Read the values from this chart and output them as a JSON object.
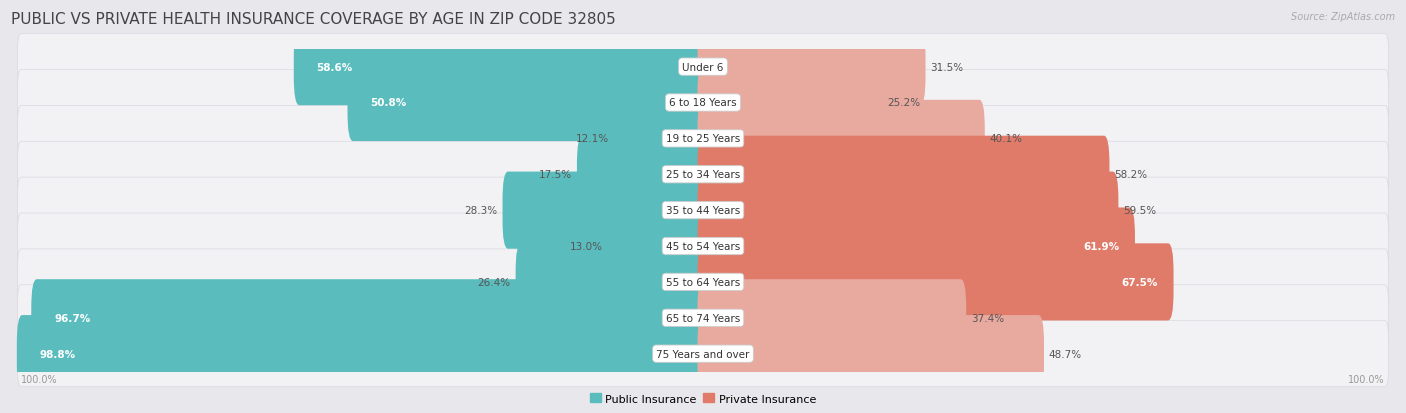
{
  "title": "PUBLIC VS PRIVATE HEALTH INSURANCE COVERAGE BY AGE IN ZIP CODE 32805",
  "source": "Source: ZipAtlas.com",
  "categories": [
    "Under 6",
    "6 to 18 Years",
    "19 to 25 Years",
    "25 to 34 Years",
    "35 to 44 Years",
    "45 to 54 Years",
    "55 to 64 Years",
    "65 to 74 Years",
    "75 Years and over"
  ],
  "public_values": [
    58.6,
    50.8,
    12.1,
    17.5,
    28.3,
    13.0,
    26.4,
    96.7,
    98.8
  ],
  "private_values": [
    31.5,
    25.2,
    40.1,
    58.2,
    59.5,
    61.9,
    67.5,
    37.4,
    48.7
  ],
  "public_color": "#5bbcbd",
  "private_color": "#e07b6a",
  "private_color_light": "#e8a99f",
  "bg_color": "#e8e8ec",
  "row_bg_color": "#f2f2f5",
  "row_border_color": "#d8d8de",
  "title_color": "#444444",
  "source_color": "#aaaaaa",
  "label_dark": "#555555",
  "label_white": "#ffffff",
  "axis_label_color": "#999999",
  "max_value": 100.0,
  "legend_labels": [
    "Public Insurance",
    "Private Insurance"
  ],
  "title_fontsize": 11,
  "label_fontsize": 7.5,
  "cat_fontsize": 7.5,
  "source_fontsize": 7,
  "legend_fontsize": 8,
  "axis_fontsize": 7
}
